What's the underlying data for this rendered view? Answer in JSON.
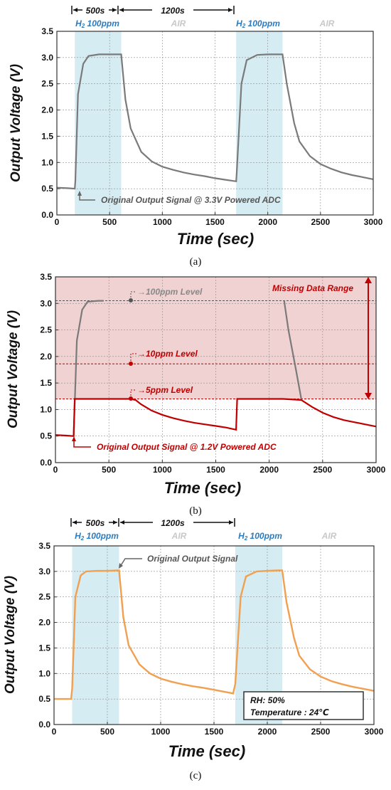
{
  "charts": [
    {
      "panel_label": "(a)",
      "xlabel": "Time (sec)",
      "ylabel": "Output Voltage (V)",
      "xticks": [
        "0",
        "500",
        "1000",
        "1500",
        "2000",
        "2500",
        "3000"
      ],
      "yticks": [
        "0.0",
        "0.5",
        "1.0",
        "1.5",
        "2.0",
        "2.5",
        "3.0",
        "3.5"
      ],
      "top_labels": [
        {
          "pre": "H",
          "sub": "2",
          "post": " 100ppm",
          "color": "#2b7bbf"
        },
        {
          "text": "AIR",
          "color": "#c8c8c8"
        },
        {
          "pre": "H",
          "sub": "2",
          "post": " 100ppm",
          "color": "#2b7bbf"
        },
        {
          "text": "AIR",
          "color": "#c8c8c8"
        }
      ],
      "arrow_labels": [
        "500s",
        "1200s"
      ],
      "annotations": [
        "Original Output Signal @ 3.3V Powered ADC"
      ]
    },
    {
      "panel_label": "(b)",
      "xlabel": "Time (sec)",
      "ylabel": "Output Voltage (V)",
      "xticks": [
        "0",
        "500",
        "1000",
        "1500",
        "2000",
        "2500",
        "3000"
      ],
      "yticks": [
        "0.0",
        "0.5",
        "1.0",
        "1.5",
        "2.0",
        "2.5",
        "3.0",
        "3.5"
      ],
      "level_labels": [
        "100ppm Level",
        "10ppm Level",
        "5ppm Level"
      ],
      "annotations": [
        "Missing Data Range",
        "Original Output Signal @ 1.2V Powered ADC"
      ]
    },
    {
      "panel_label": "(c)",
      "xlabel": "Time (sec)",
      "ylabel": "Output Voltage (V)",
      "xticks": [
        "0",
        "500",
        "1000",
        "1500",
        "2000",
        "2500",
        "3000"
      ],
      "yticks": [
        "0.0",
        "0.5",
        "1.0",
        "1.5",
        "2.0",
        "2.5",
        "3.0",
        "3.5"
      ],
      "top_labels": [
        {
          "pre": "H",
          "sub": "2",
          "post": " 100ppm",
          "color": "#2b7bbf"
        },
        {
          "text": "AIR",
          "color": "#c8c8c8"
        },
        {
          "pre": "H",
          "sub": "2",
          "post": " 100ppm",
          "color": "#2b7bbf"
        },
        {
          "text": "AIR",
          "color": "#c8c8c8"
        }
      ],
      "arrow_labels": [
        "500s",
        "1200s"
      ],
      "annotations": [
        "Original Output Signal"
      ],
      "conditions": [
        "RH: 50%",
        "Temperature : 24℃"
      ]
    }
  ],
  "chart_data": [
    {
      "type": "line",
      "xlim": [
        0,
        3000
      ],
      "ylim": [
        0,
        3.5
      ],
      "grid": true,
      "colors": {
        "signal": "#7a7a7a",
        "shade": "#d6ecf3"
      },
      "shaded_regions": [
        [
          170,
          610
        ],
        [
          1700,
          2140
        ]
      ],
      "series": [
        {
          "x": [
            0,
            100,
            170,
            175,
            200,
            250,
            300,
            400,
            500,
            600,
            610,
            650,
            700,
            800,
            900,
            1000,
            1100,
            1200,
            1300,
            1400,
            1500,
            1600,
            1700,
            1705,
            1750,
            1800,
            1900,
            2000,
            2100,
            2140,
            2180,
            2250,
            2300,
            2400,
            2500,
            2600,
            2700,
            2800,
            2900,
            3000
          ],
          "y": [
            0.52,
            0.51,
            0.5,
            0.65,
            2.3,
            2.88,
            3.03,
            3.06,
            3.06,
            3.06,
            3.06,
            2.2,
            1.65,
            1.2,
            1.02,
            0.92,
            0.86,
            0.81,
            0.77,
            0.74,
            0.7,
            0.67,
            0.64,
            0.78,
            2.5,
            2.95,
            3.05,
            3.06,
            3.06,
            3.06,
            2.5,
            1.75,
            1.4,
            1.12,
            0.97,
            0.88,
            0.81,
            0.76,
            0.72,
            0.68
          ]
        }
      ]
    },
    {
      "type": "line",
      "xlim": [
        0,
        3000
      ],
      "ylim": [
        0,
        3.5
      ],
      "grid": true,
      "colors": {
        "clipped": "#c00000",
        "full": "#7a7a7a",
        "missing_range": "#f1d2d2"
      },
      "missing_range": [
        1.2,
        3.5
      ],
      "levels": [
        {
          "value": 3.05,
          "color": "#555555"
        },
        {
          "value": 1.86,
          "color": "#c00000"
        },
        {
          "value": 1.2,
          "color": "#c00000"
        }
      ],
      "series": [
        {
          "x": [
            0,
            100,
            170,
            175,
            2130,
            2140,
            2180,
            2250,
            2270,
            2300,
            2400,
            2500,
            2600,
            2700,
            2800,
            2900,
            3000
          ],
          "y": [
            null,
            null,
            null,
            null,
            null,
            3.05,
            2.5,
            1.75,
            1.6,
            1.4,
            null,
            null,
            null,
            null,
            null,
            null,
            null
          ],
          "visible_x": [
            2140,
            2180,
            2250,
            2300
          ],
          "visible_y": [
            3.05,
            2.5,
            1.75,
            1.2
          ]
        },
        {
          "x": [
            170,
            200,
            250,
            300,
            400,
            450
          ],
          "y": [
            0.5,
            2.3,
            2.88,
            3.03,
            3.05,
            3.05
          ]
        },
        {
          "x": [
            0,
            100,
            170,
            180,
            200,
            700,
            750,
            800,
            900,
            1000,
            1100,
            1200,
            1300,
            1400,
            1500,
            1600,
            1690,
            1700,
            2130,
            2300,
            2400,
            2500,
            2600,
            2700,
            2800,
            2900,
            3000
          ],
          "y": [
            0.52,
            0.51,
            0.5,
            1.2,
            1.2,
            1.2,
            1.18,
            1.1,
            0.98,
            0.9,
            0.84,
            0.79,
            0.75,
            0.72,
            0.69,
            0.66,
            0.62,
            1.2,
            1.2,
            1.18,
            1.05,
            0.94,
            0.86,
            0.8,
            0.76,
            0.72,
            0.68
          ]
        }
      ]
    },
    {
      "type": "line",
      "xlim": [
        0,
        3000
      ],
      "ylim": [
        0,
        3.5
      ],
      "grid": true,
      "colors": {
        "signal": "#f0a050",
        "shade": "#d6ecf3"
      },
      "shaded_regions": [
        [
          170,
          610
        ],
        [
          1700,
          2140
        ]
      ],
      "series": [
        {
          "x": [
            0,
            100,
            160,
            170,
            200,
            250,
            300,
            400,
            500,
            600,
            610,
            650,
            700,
            800,
            900,
            1000,
            1100,
            1200,
            1300,
            1400,
            1500,
            1600,
            1680,
            1700,
            1750,
            1800,
            1900,
            2000,
            2100,
            2140,
            2180,
            2250,
            2300,
            2400,
            2500,
            2600,
            2700,
            2800,
            2900,
            3000
          ],
          "y": [
            0.5,
            0.5,
            0.5,
            0.7,
            2.5,
            2.92,
            3.0,
            3.01,
            3.01,
            3.02,
            3.02,
            2.1,
            1.55,
            1.18,
            1.0,
            0.9,
            0.84,
            0.79,
            0.75,
            0.72,
            0.68,
            0.64,
            0.61,
            0.8,
            2.5,
            2.9,
            3.0,
            3.01,
            3.02,
            3.02,
            2.4,
            1.7,
            1.35,
            1.08,
            0.94,
            0.85,
            0.79,
            0.74,
            0.7,
            0.66
          ]
        }
      ]
    }
  ]
}
